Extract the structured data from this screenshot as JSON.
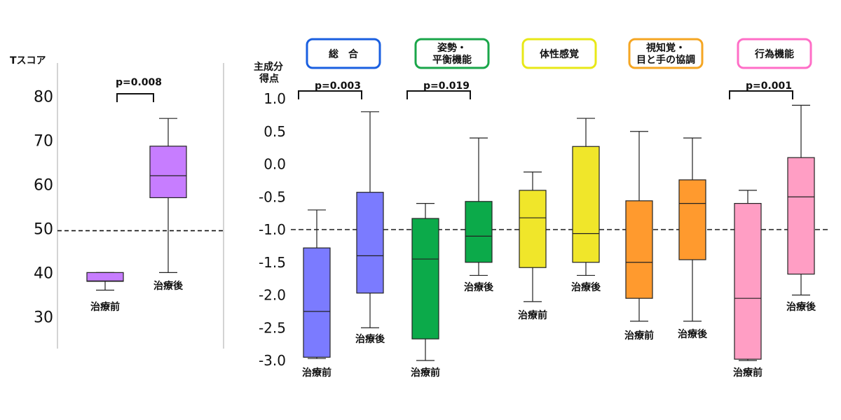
{
  "chart_data": [
    {
      "type": "box",
      "ylabel": "Tスコア",
      "ylim": [
        24,
        86
      ],
      "yticks": [
        30,
        40,
        50,
        60,
        70,
        80
      ],
      "reference_line": 49.5,
      "categories": [
        "治療前",
        "治療後"
      ],
      "boxes": [
        {
          "label": "治療前",
          "min": 36,
          "q1": 38,
          "median": 38.1,
          "q3": 40,
          "max": 40,
          "color": "#c77dff"
        },
        {
          "label": "治療後",
          "min": 40,
          "q1": 57,
          "median": 62,
          "q3": 68.7,
          "max": 75,
          "color": "#c77dff"
        }
      ],
      "annotations": [
        {
          "text": "p=0.008"
        }
      ]
    },
    {
      "type": "box",
      "ylabel": "主成分得点",
      "ylabel_lines": [
        "主成分",
        "得点"
      ],
      "ylim": [
        -3.0,
        1.0
      ],
      "yticks": [
        "1.0",
        "0.5",
        "0.0",
        "-0.5",
        "-1.0",
        "-1.5",
        "-2.0",
        "-2.5",
        "-3.0"
      ],
      "reference_line": -1.0,
      "groups": [
        {
          "title": [
            "総　合"
          ],
          "border_color": "#1a5fe0",
          "fill": "#7b7bff",
          "p_value": "p=0.003",
          "boxes": [
            {
              "label": "治療前",
              "min": -2.97,
              "q1": -2.95,
              "median": -2.25,
              "q3": -1.28,
              "max": -0.7
            },
            {
              "label": "治療後",
              "min": -2.5,
              "q1": -1.97,
              "median": -1.4,
              "q3": -0.43,
              "max": 0.8
            }
          ]
        },
        {
          "title": [
            "姿勢・",
            "平衡機能"
          ],
          "border_color": "#1aa64a",
          "fill": "#0caa4a",
          "p_value": "p=0.019",
          "boxes": [
            {
              "label": "治療前",
              "min": -3.0,
              "q1": -2.67,
              "median": -1.45,
              "q3": -0.83,
              "max": -0.6
            },
            {
              "label": "治療後",
              "min": -1.7,
              "q1": -1.5,
              "median": -1.1,
              "q3": -0.57,
              "max": 0.4
            }
          ]
        },
        {
          "title": [
            "体性感覚"
          ],
          "border_color": "#e8e817",
          "fill": "#f0e62a",
          "p_value": "",
          "boxes": [
            {
              "label": "治療前",
              "min": -2.1,
              "q1": -1.58,
              "median": -0.82,
              "q3": -0.4,
              "max": -0.12
            },
            {
              "label": "治療後",
              "min": -1.7,
              "q1": -1.5,
              "median": -1.06,
              "q3": 0.27,
              "max": 0.7
            }
          ]
        },
        {
          "title": [
            "視知覚・",
            "目と手の協調"
          ],
          "border_color": "#f5a623",
          "fill": "#ff9a2e",
          "p_value": "",
          "boxes": [
            {
              "label": "治療前",
              "min": -2.4,
              "q1": -2.05,
              "median": -1.5,
              "q3": -0.56,
              "max": 0.5
            },
            {
              "label": "治療後",
              "min": -2.4,
              "q1": -1.46,
              "median": -0.6,
              "q3": -0.24,
              "max": 0.4
            }
          ]
        },
        {
          "title": [
            "行為機能"
          ],
          "border_color": "#ff6ec7",
          "fill": "#ff9ec4",
          "p_value": "p=0.001",
          "boxes": [
            {
              "label": "治療前",
              "min": -3.0,
              "q1": -2.98,
              "median": -2.05,
              "q3": -0.6,
              "max": -0.4
            },
            {
              "label": "治療後",
              "min": -2.0,
              "q1": -1.68,
              "median": -0.5,
              "q3": 0.1,
              "max": 0.9
            }
          ]
        }
      ]
    }
  ]
}
